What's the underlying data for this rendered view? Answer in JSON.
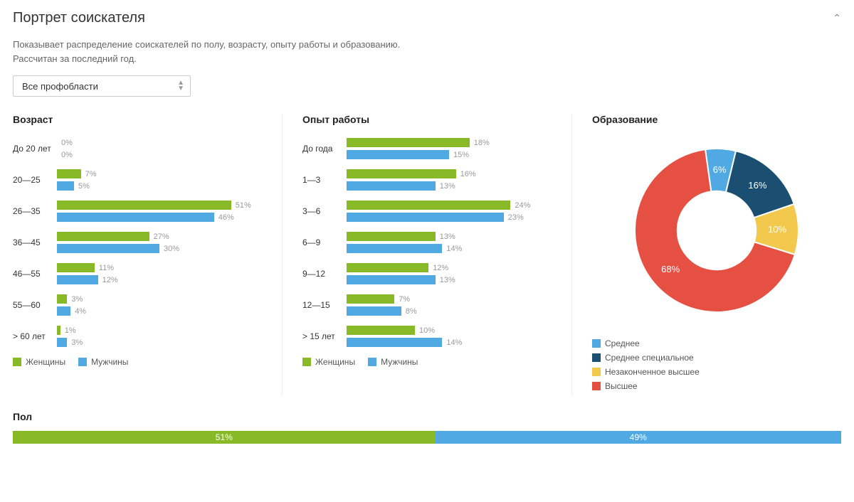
{
  "colors": {
    "green": "#88b927",
    "blue": "#50a9e2",
    "darkblue": "#1b4f72",
    "yellow": "#f2c94c",
    "red": "#e55043",
    "label_muted": "#999999"
  },
  "header": {
    "title": "Портрет соискателя",
    "subtitle_line1": "Показывает распределение соискателей по полу, возрасту, опыту работы и образованию.",
    "subtitle_line2": "Рассчитан за последний год."
  },
  "filter": {
    "selected": "Все профобласти"
  },
  "age_chart": {
    "title": "Возраст",
    "type": "paired-bar",
    "max_pct": 60,
    "series": [
      {
        "label": "Женщины",
        "color": "#88b927"
      },
      {
        "label": "Мужчины",
        "color": "#50a9e2"
      }
    ],
    "categories": [
      {
        "label": "До 20 лет",
        "values": [
          0,
          0
        ]
      },
      {
        "label": "20—25",
        "values": [
          7,
          5
        ]
      },
      {
        "label": "26—35",
        "values": [
          51,
          46
        ]
      },
      {
        "label": "36—45",
        "values": [
          27,
          30
        ]
      },
      {
        "label": "46—55",
        "values": [
          11,
          12
        ]
      },
      {
        "label": "55—60",
        "values": [
          3,
          4
        ]
      },
      {
        "label": "> 60 лет",
        "values": [
          1,
          3
        ]
      }
    ]
  },
  "experience_chart": {
    "title": "Опыт работы",
    "type": "paired-bar",
    "max_pct": 30,
    "series": [
      {
        "label": "Женщины",
        "color": "#88b927"
      },
      {
        "label": "Мужчины",
        "color": "#50a9e2"
      }
    ],
    "categories": [
      {
        "label": "До года",
        "values": [
          18,
          15
        ]
      },
      {
        "label": "1—3",
        "values": [
          16,
          13
        ]
      },
      {
        "label": "3—6",
        "values": [
          24,
          23
        ]
      },
      {
        "label": "6—9",
        "values": [
          13,
          14
        ]
      },
      {
        "label": "9—12",
        "values": [
          12,
          13
        ]
      },
      {
        "label": "12—15",
        "values": [
          7,
          8
        ]
      },
      {
        "label": "> 15 лет",
        "values": [
          10,
          14
        ]
      }
    ]
  },
  "education_chart": {
    "title": "Образование",
    "type": "donut",
    "slices": [
      {
        "label": "Среднее",
        "value": 6,
        "color": "#50a9e2"
      },
      {
        "label": "Среднее специальное",
        "value": 16,
        "color": "#1b4f72"
      },
      {
        "label": "Незаконченное высшее",
        "value": 10,
        "color": "#f2c94c"
      },
      {
        "label": "Высшее",
        "value": 68,
        "color": "#e55043"
      }
    ],
    "inner_radius_pct": 48,
    "start_angle_deg": -8
  },
  "gender_chart": {
    "title": "Пол",
    "type": "stacked-bar",
    "segments": [
      {
        "label": "51%",
        "value": 51,
        "color": "#88b927"
      },
      {
        "label": "49%",
        "value": 49,
        "color": "#50a9e2"
      }
    ]
  }
}
